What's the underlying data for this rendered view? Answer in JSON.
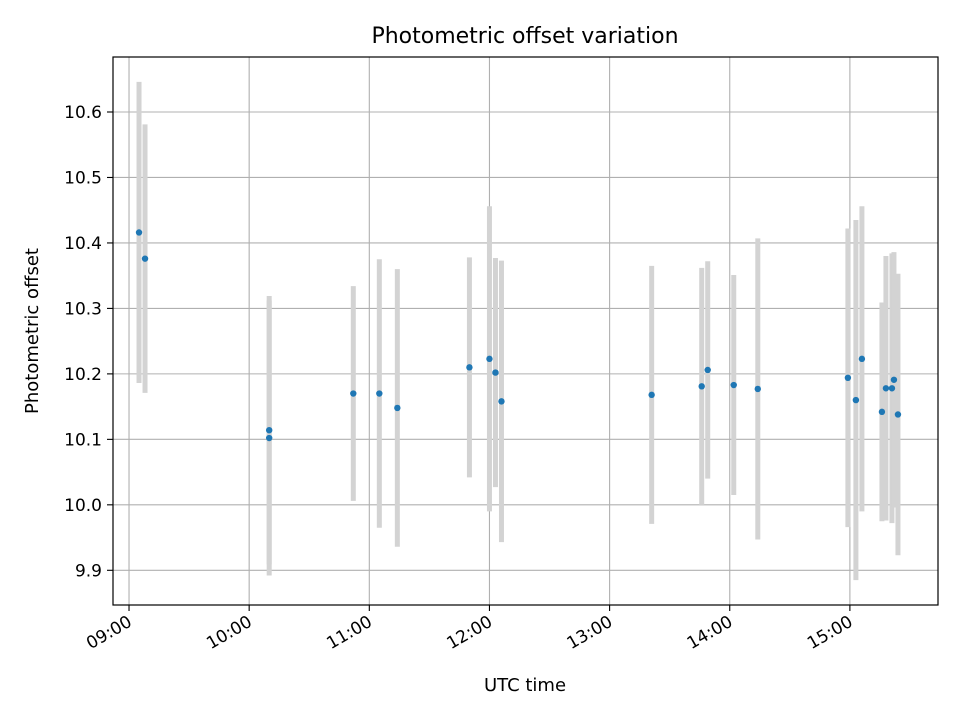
{
  "chart_data": {
    "type": "scatter",
    "title": "Photometric offset variation",
    "xlabel": "UTC time",
    "ylabel": "Photometric offset",
    "x_type": "time",
    "xlim": [
      "08:52",
      "15:44"
    ],
    "ylim": [
      9.847,
      10.684
    ],
    "x_ticks": [
      "09:00",
      "10:00",
      "11:00",
      "12:00",
      "13:00",
      "14:00",
      "15:00"
    ],
    "y_ticks": [
      "9.9",
      "10.0",
      "10.1",
      "10.2",
      "10.3",
      "10.4",
      "10.5",
      "10.6"
    ],
    "grid": true,
    "legend": "none",
    "colors": {
      "points": "#1f77b4",
      "errorbars": "#d3d3d3",
      "grid": "#b0b0b0"
    },
    "series": [
      {
        "points": [
          {
            "x": "09:05",
            "y": 10.416,
            "err": 0.23
          },
          {
            "x": "09:08",
            "y": 10.376,
            "err": 0.205
          },
          {
            "x": "10:10",
            "y": 10.114,
            "err": 0.205
          },
          {
            "x": "10:10",
            "y": 10.102,
            "err": 0.21
          },
          {
            "x": "10:52",
            "y": 10.17,
            "err": 0.164
          },
          {
            "x": "11:05",
            "y": 10.17,
            "err": 0.205
          },
          {
            "x": "11:14",
            "y": 10.148,
            "err": 0.212
          },
          {
            "x": "11:50",
            "y": 10.21,
            "err": 0.168
          },
          {
            "x": "12:00",
            "y": 10.223,
            "err": 0.233
          },
          {
            "x": "12:03",
            "y": 10.202,
            "err": 0.175
          },
          {
            "x": "12:06",
            "y": 10.158,
            "err": 0.215
          },
          {
            "x": "13:21",
            "y": 10.168,
            "err": 0.197
          },
          {
            "x": "13:46",
            "y": 10.181,
            "err": 0.181
          },
          {
            "x": "13:49",
            "y": 10.206,
            "err": 0.166
          },
          {
            "x": "14:02",
            "y": 10.183,
            "err": 0.168
          },
          {
            "x": "14:14",
            "y": 10.177,
            "err": 0.23
          },
          {
            "x": "14:59",
            "y": 10.194,
            "err": 0.228
          },
          {
            "x": "15:03",
            "y": 10.16,
            "err": 0.275
          },
          {
            "x": "15:06",
            "y": 10.223,
            "err": 0.233
          },
          {
            "x": "15:16",
            "y": 10.142,
            "err": 0.167
          },
          {
            "x": "15:18",
            "y": 10.178,
            "err": 0.202
          },
          {
            "x": "15:21",
            "y": 10.178,
            "err": 0.206
          },
          {
            "x": "15:22",
            "y": 10.191,
            "err": 0.195
          },
          {
            "x": "15:24",
            "y": 10.138,
            "err": 0.215
          }
        ]
      }
    ]
  }
}
